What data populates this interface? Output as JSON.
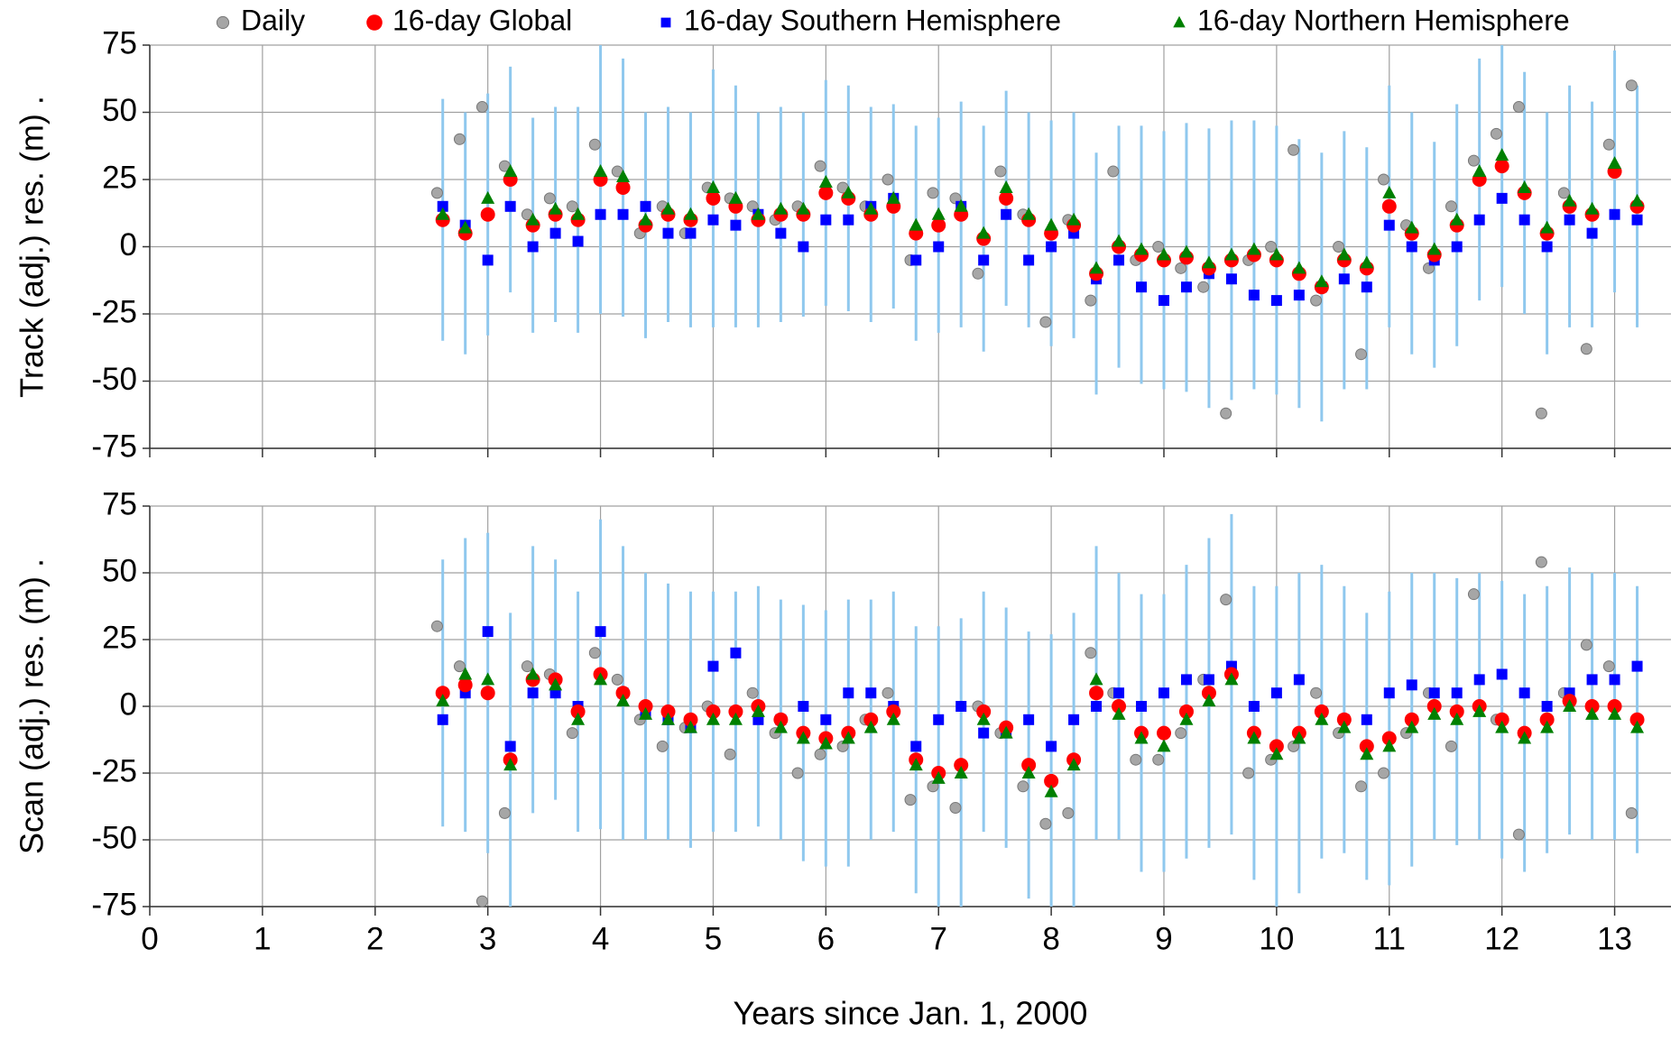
{
  "chart_data": [
    {
      "type": "scatter",
      "y_label": "Track (adj.) res. (m) .",
      "xlim": [
        0,
        13.5
      ],
      "xticks": [
        0,
        1,
        2,
        3,
        4,
        5,
        6,
        7,
        8,
        9,
        10,
        11,
        12,
        13
      ],
      "ylim": [
        -75,
        75
      ],
      "yticks": [
        -75,
        -50,
        -25,
        0,
        25,
        50,
        75
      ],
      "grid": true,
      "legend": "top",
      "error_color": "#8fc8ee",
      "series": [
        {
          "name": "Daily",
          "color": "#a6a6a6",
          "marker": "circle",
          "x": [
            2.55,
            2.75,
            2.95,
            3.15,
            3.35,
            3.55,
            3.75,
            3.95,
            4.15,
            4.35,
            4.55,
            4.75,
            4.95,
            5.15,
            5.35,
            5.55,
            5.75,
            5.95,
            6.15,
            6.35,
            6.55,
            6.75,
            6.95,
            7.15,
            7.35,
            7.55,
            7.75,
            7.95,
            8.15,
            8.35,
            8.55,
            8.75,
            8.95,
            9.15,
            9.35,
            9.55,
            9.75,
            9.95,
            10.15,
            10.35,
            10.55,
            10.75,
            10.95,
            11.15,
            11.35,
            11.55,
            11.75,
            11.95,
            12.15,
            12.35,
            12.55,
            12.75,
            12.95,
            13.15
          ],
          "values": [
            20,
            40,
            52,
            30,
            12,
            18,
            15,
            38,
            28,
            5,
            15,
            5,
            22,
            18,
            15,
            10,
            15,
            30,
            22,
            15,
            25,
            -5,
            20,
            18,
            -10,
            28,
            12,
            -28,
            10,
            -20,
            28,
            -5,
            0,
            -8,
            -15,
            -62,
            -5,
            0,
            36,
            -20,
            0,
            -40,
            25,
            8,
            -8,
            15,
            32,
            42,
            52,
            -62,
            20,
            -38,
            38,
            60
          ]
        },
        {
          "name": "16-day Global",
          "color": "#ff0000",
          "marker": "circle",
          "x": [
            2.6,
            2.8,
            3.0,
            3.2,
            3.4,
            3.6,
            3.8,
            4.0,
            4.2,
            4.4,
            4.6,
            4.8,
            5.0,
            5.2,
            5.4,
            5.6,
            5.8,
            6.0,
            6.2,
            6.4,
            6.6,
            6.8,
            7.0,
            7.2,
            7.4,
            7.6,
            7.8,
            8.0,
            8.2,
            8.4,
            8.6,
            8.8,
            9.0,
            9.2,
            9.4,
            9.6,
            9.8,
            10.0,
            10.2,
            10.4,
            10.6,
            10.8,
            11.0,
            11.2,
            11.4,
            11.6,
            11.8,
            12.0,
            12.2,
            12.4,
            12.6,
            12.8,
            13.0,
            13.2
          ],
          "values": [
            10,
            5,
            12,
            25,
            8,
            12,
            10,
            25,
            22,
            8,
            12,
            10,
            18,
            15,
            10,
            12,
            12,
            20,
            18,
            12,
            15,
            5,
            8,
            12,
            3,
            18,
            10,
            5,
            8,
            -10,
            0,
            -3,
            -5,
            -4,
            -8,
            -5,
            -3,
            -5,
            -10,
            -15,
            -5,
            -8,
            15,
            5,
            -3,
            8,
            25,
            30,
            20,
            5,
            15,
            12,
            28,
            15
          ],
          "errors": [
            45,
            45,
            45,
            42,
            40,
            40,
            42,
            50,
            48,
            42,
            40,
            40,
            48,
            45,
            40,
            40,
            38,
            42,
            42,
            40,
            38,
            40,
            40,
            42,
            42,
            40,
            40,
            42,
            42,
            45,
            45,
            48,
            48,
            50,
            52,
            52,
            50,
            50,
            50,
            50,
            48,
            45,
            45,
            45,
            42,
            45,
            45,
            45,
            45,
            45,
            45,
            42,
            45,
            45
          ]
        },
        {
          "name": "16-day Southern Hemisphere",
          "color": "#0000ff",
          "marker": "square",
          "x": [
            2.6,
            2.8,
            3.0,
            3.2,
            3.4,
            3.6,
            3.8,
            4.0,
            4.2,
            4.4,
            4.6,
            4.8,
            5.0,
            5.2,
            5.4,
            5.6,
            5.8,
            6.0,
            6.2,
            6.4,
            6.6,
            6.8,
            7.0,
            7.2,
            7.4,
            7.6,
            7.8,
            8.0,
            8.2,
            8.4,
            8.6,
            8.8,
            9.0,
            9.2,
            9.4,
            9.6,
            9.8,
            10.0,
            10.2,
            10.4,
            10.6,
            10.8,
            11.0,
            11.2,
            11.4,
            11.6,
            11.8,
            12.0,
            12.2,
            12.4,
            12.6,
            12.8,
            13.0,
            13.2
          ],
          "values": [
            15,
            8,
            -5,
            15,
            0,
            5,
            2,
            12,
            12,
            15,
            5,
            5,
            10,
            8,
            12,
            5,
            0,
            10,
            10,
            15,
            18,
            -5,
            0,
            15,
            -5,
            12,
            -5,
            0,
            5,
            -12,
            -5,
            -15,
            -20,
            -15,
            -10,
            -12,
            -18,
            -20,
            -18,
            -15,
            -12,
            -15,
            8,
            0,
            -5,
            0,
            10,
            18,
            10,
            0,
            10,
            5,
            12,
            10
          ]
        },
        {
          "name": "16-day Northern Hemisphere",
          "color": "#008000",
          "marker": "triangle",
          "x": [
            2.6,
            2.8,
            3.0,
            3.2,
            3.4,
            3.6,
            3.8,
            4.0,
            4.2,
            4.4,
            4.6,
            4.8,
            5.0,
            5.2,
            5.4,
            5.6,
            5.8,
            6.0,
            6.2,
            6.4,
            6.6,
            6.8,
            7.0,
            7.2,
            7.4,
            7.6,
            7.8,
            8.0,
            8.2,
            8.4,
            8.6,
            8.8,
            9.0,
            9.2,
            9.4,
            9.6,
            9.8,
            10.0,
            10.2,
            10.4,
            10.6,
            10.8,
            11.0,
            11.2,
            11.4,
            11.6,
            11.8,
            12.0,
            12.2,
            12.4,
            12.6,
            12.8,
            13.0,
            13.2
          ],
          "values": [
            12,
            7,
            18,
            28,
            10,
            14,
            12,
            28,
            26,
            10,
            14,
            12,
            22,
            18,
            12,
            14,
            14,
            24,
            20,
            14,
            18,
            8,
            12,
            15,
            5,
            22,
            12,
            8,
            10,
            -8,
            2,
            -1,
            -3,
            -2,
            -6,
            -3,
            -1,
            -3,
            -8,
            -13,
            -3,
            -6,
            20,
            7,
            -1,
            10,
            28,
            34,
            22,
            7,
            17,
            14,
            31,
            17
          ]
        }
      ]
    },
    {
      "type": "scatter",
      "y_label": "Scan (adj.) res. (m) .",
      "x_label": "Years since Jan. 1, 2000",
      "xlim": [
        0,
        13.5
      ],
      "xticks": [
        0,
        1,
        2,
        3,
        4,
        5,
        6,
        7,
        8,
        9,
        10,
        11,
        12,
        13
      ],
      "ylim": [
        -75,
        75
      ],
      "yticks": [
        -75,
        -50,
        -25,
        0,
        25,
        50,
        75
      ],
      "grid": true,
      "error_color": "#8fc8ee",
      "series": [
        {
          "color": "#a6a6a6",
          "marker": "circle",
          "x": [
            2.55,
            2.75,
            2.95,
            3.15,
            3.35,
            3.55,
            3.75,
            3.95,
            4.15,
            4.35,
            4.55,
            4.75,
            4.95,
            5.15,
            5.35,
            5.55,
            5.75,
            5.95,
            6.15,
            6.35,
            6.55,
            6.75,
            6.95,
            7.15,
            7.35,
            7.55,
            7.75,
            7.95,
            8.15,
            8.35,
            8.55,
            8.75,
            8.95,
            9.15,
            9.35,
            9.55,
            9.75,
            9.95,
            10.15,
            10.35,
            10.55,
            10.75,
            10.95,
            11.15,
            11.35,
            11.55,
            11.75,
            11.95,
            12.15,
            12.35,
            12.55,
            12.75,
            12.95,
            13.15
          ],
          "values": [
            30,
            15,
            -73,
            -40,
            15,
            12,
            -10,
            20,
            10,
            -5,
            -15,
            -8,
            0,
            -18,
            5,
            -10,
            -25,
            -18,
            -15,
            -5,
            5,
            -35,
            -30,
            -38,
            0,
            -10,
            -30,
            -44,
            -40,
            20,
            5,
            -20,
            -20,
            -10,
            10,
            40,
            -25,
            -20,
            -15,
            5,
            -10,
            -30,
            -25,
            -10,
            5,
            -15,
            42,
            -5,
            -48,
            54,
            5,
            23,
            15,
            -40
          ]
        },
        {
          "color": "#ff0000",
          "marker": "circle",
          "x": [
            2.6,
            2.8,
            3.0,
            3.2,
            3.4,
            3.6,
            3.8,
            4.0,
            4.2,
            4.4,
            4.6,
            4.8,
            5.0,
            5.2,
            5.4,
            5.6,
            5.8,
            6.0,
            6.2,
            6.4,
            6.6,
            6.8,
            7.0,
            7.2,
            7.4,
            7.6,
            7.8,
            8.0,
            8.2,
            8.4,
            8.6,
            8.8,
            9.0,
            9.2,
            9.4,
            9.6,
            9.8,
            10.0,
            10.2,
            10.4,
            10.6,
            10.8,
            11.0,
            11.2,
            11.4,
            11.6,
            11.8,
            12.0,
            12.2,
            12.4,
            12.6,
            12.8,
            13.0,
            13.2
          ],
          "values": [
            5,
            8,
            5,
            -20,
            10,
            10,
            -2,
            12,
            5,
            0,
            -2,
            -5,
            -2,
            -2,
            0,
            -5,
            -10,
            -12,
            -10,
            -5,
            -2,
            -20,
            -25,
            -22,
            -2,
            -8,
            -22,
            -28,
            -20,
            5,
            0,
            -10,
            -10,
            -2,
            5,
            12,
            -10,
            -15,
            -10,
            -2,
            -5,
            -15,
            -12,
            -5,
            0,
            -2,
            0,
            -5,
            -10,
            -5,
            2,
            0,
            0,
            -5
          ],
          "errors": [
            50,
            55,
            60,
            55,
            50,
            45,
            45,
            58,
            55,
            50,
            48,
            48,
            45,
            45,
            45,
            45,
            48,
            48,
            50,
            45,
            45,
            50,
            55,
            55,
            45,
            45,
            50,
            55,
            55,
            55,
            50,
            52,
            52,
            55,
            58,
            60,
            55,
            60,
            60,
            55,
            50,
            50,
            55,
            55,
            50,
            50,
            50,
            52,
            52,
            50,
            50,
            50,
            50,
            50
          ]
        },
        {
          "color": "#0000ff",
          "marker": "square",
          "x": [
            2.6,
            2.8,
            3.0,
            3.2,
            3.4,
            3.6,
            3.8,
            4.0,
            4.2,
            4.4,
            4.6,
            4.8,
            5.0,
            5.2,
            5.4,
            5.6,
            5.8,
            6.0,
            6.2,
            6.4,
            6.6,
            6.8,
            7.0,
            7.2,
            7.4,
            7.6,
            7.8,
            8.0,
            8.2,
            8.4,
            8.6,
            8.8,
            9.0,
            9.2,
            9.4,
            9.6,
            9.8,
            10.0,
            10.2,
            10.4,
            10.6,
            10.8,
            11.0,
            11.2,
            11.4,
            11.6,
            11.8,
            12.0,
            12.2,
            12.4,
            12.6,
            12.8,
            13.0,
            13.2
          ],
          "values": [
            -5,
            5,
            28,
            -15,
            5,
            5,
            0,
            28,
            5,
            -2,
            -5,
            -8,
            15,
            20,
            -5,
            -5,
            0,
            -5,
            5,
            5,
            0,
            -15,
            -5,
            0,
            -10,
            -10,
            -5,
            -15,
            -5,
            0,
            5,
            0,
            5,
            10,
            10,
            15,
            0,
            5,
            10,
            -2,
            -5,
            -5,
            5,
            8,
            5,
            5,
            10,
            12,
            5,
            0,
            5,
            10,
            10,
            15
          ]
        },
        {
          "color": "#008000",
          "marker": "triangle",
          "x": [
            2.6,
            2.8,
            3.0,
            3.2,
            3.4,
            3.6,
            3.8,
            4.0,
            4.2,
            4.4,
            4.6,
            4.8,
            5.0,
            5.2,
            5.4,
            5.6,
            5.8,
            6.0,
            6.2,
            6.4,
            6.6,
            6.8,
            7.0,
            7.2,
            7.4,
            7.6,
            7.8,
            8.0,
            8.2,
            8.4,
            8.6,
            8.8,
            9.0,
            9.2,
            9.4,
            9.6,
            9.8,
            10.0,
            10.2,
            10.4,
            10.6,
            10.8,
            11.0,
            11.2,
            11.4,
            11.6,
            11.8,
            12.0,
            12.2,
            12.4,
            12.6,
            12.8,
            13.0,
            13.2
          ],
          "values": [
            2,
            12,
            10,
            -22,
            12,
            8,
            -5,
            10,
            2,
            -3,
            -5,
            -8,
            -5,
            -5,
            -2,
            -8,
            -12,
            -14,
            -12,
            -8,
            -5,
            -22,
            -27,
            -25,
            -5,
            -10,
            -25,
            -32,
            -22,
            10,
            -3,
            -12,
            -15,
            -5,
            2,
            10,
            -12,
            -18,
            -12,
            -5,
            -8,
            -18,
            -15,
            -8,
            -3,
            -5,
            -2,
            -8,
            -12,
            -8,
            0,
            -3,
            -3,
            -8
          ]
        }
      ]
    }
  ]
}
